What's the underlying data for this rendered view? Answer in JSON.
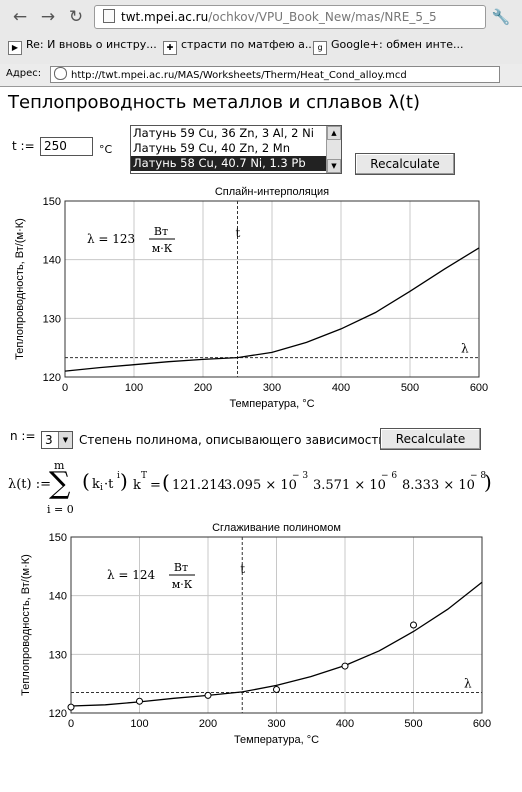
{
  "browser": {
    "url_host": "twt.mpei.ac.ru",
    "url_path": "/ochkov/VPU_Book_New/mas/NRE_5_5",
    "bookmarks": [
      {
        "label": "Re: И вновь о инстру...",
        "icon": "play-icon"
      },
      {
        "label": "страсти по матфею а...",
        "icon": "puzzle-icon"
      },
      {
        "label": "Google+: обмен инте...",
        "icon": "google-plus-icon"
      }
    ],
    "address_label": "Адрес:",
    "address_value": "http://twt.mpei.ac.ru/MAS/Worksheets/Therm/Heat_Cond_alloy.mcd"
  },
  "page": {
    "title": "Теплопроводность металлов и сплавов λ(t)",
    "t_label": "t :=",
    "t_value": "250",
    "t_unit": "°C",
    "alloys": [
      "Латунь 59 Cu, 36 Zn, 3 Al, 2 Ni",
      "Латунь 59 Cu, 40 Zn, 2 Mn",
      "Латунь 58 Cu, 40.7 Ni, 1.3 Pb"
    ],
    "selected_alloy": 2,
    "recalc_label": "Recalculate",
    "n_label": "n :=",
    "n_value": "3",
    "n_desc": "Степень полинома, описывающего зависимость",
    "formula": {
      "lhs": "λ(t) :=",
      "sum_top": "m",
      "sum_bottom": "i = 0",
      "term": "k",
      "term_sub": "i",
      "term_tail": "·t",
      "term_sup": "i",
      "k_label": "k",
      "k_sup": "T",
      "eq": "=",
      "coefs": [
        {
          "mant": "121.214",
          "exp": ""
        },
        {
          "mant": "3.095 × 10",
          "exp": "− 3"
        },
        {
          "mant": "3.571 × 10",
          "exp": "− 6"
        },
        {
          "mant": "8.333 × 10",
          "exp": "− 8"
        }
      ]
    }
  },
  "chart_data": [
    {
      "type": "line",
      "title": "Сплайн-интерполяция",
      "xlabel": "Температура, °С",
      "ylabel": "Теплопроводность, Вт/(м·К)",
      "xlim": [
        0,
        600
      ],
      "ylim": [
        120,
        150
      ],
      "xticks": [
        "0",
        "100",
        "200",
        "300",
        "400",
        "500",
        "600"
      ],
      "yticks": [
        "120",
        "130",
        "140",
        "150"
      ],
      "series": [
        {
          "x": [
            0,
            50,
            100,
            150,
            200,
            250,
            300,
            350,
            400,
            450,
            500,
            550,
            600
          ],
          "y": [
            121.0,
            121.6,
            122.1,
            122.6,
            123.0,
            123.3,
            124.2,
            125.9,
            128.2,
            131.0,
            134.6,
            138.4,
            142.0
          ]
        }
      ],
      "marker_t": 250,
      "marker_t_label": "t",
      "lambda_line": 123.3,
      "lambda_label": "λ",
      "annotation": {
        "prefix": "λ = 123",
        "num": "Вт",
        "den": "м·К"
      }
    },
    {
      "type": "line",
      "title": "Сглаживание полиномом",
      "xlabel": "Температура, °С",
      "ylabel": "Теплопроводность, Вт/(м·К)",
      "xlim": [
        0,
        600
      ],
      "ylim": [
        120,
        150
      ],
      "xticks": [
        "0",
        "100",
        "200",
        "300",
        "400",
        "500",
        "600"
      ],
      "yticks": [
        "120",
        "130",
        "140",
        "150"
      ],
      "series": [
        {
          "x": [
            0,
            50,
            100,
            150,
            200,
            250,
            300,
            350,
            400,
            450,
            500,
            550,
            600
          ],
          "y": [
            121.2,
            121.4,
            121.9,
            122.5,
            123.0,
            123.6,
            124.7,
            126.2,
            128.1,
            130.6,
            133.9,
            137.7,
            142.3
          ]
        }
      ],
      "points": {
        "x": [
          0,
          100,
          200,
          300,
          400,
          500
        ],
        "y": [
          121,
          122,
          123,
          124,
          128,
          135
        ]
      },
      "marker_t": 250,
      "marker_t_label": "t",
      "lambda_line": 123.5,
      "lambda_label": "λ",
      "annotation": {
        "prefix": "λ = 124",
        "num": "Вт",
        "den": "м·К"
      }
    }
  ]
}
